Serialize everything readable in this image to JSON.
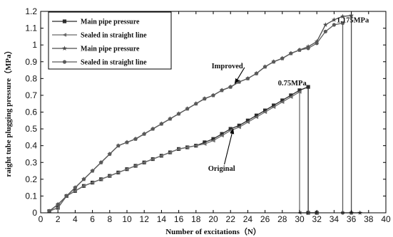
{
  "chart_data": {
    "type": "line",
    "xlabel": "Number of excitations（N）",
    "ylabel": "raight tube plugging pressure（MPa）",
    "xlim": [
      0,
      40
    ],
    "ylim": [
      0,
      1.2
    ],
    "xticks": [
      0,
      2,
      4,
      6,
      8,
      10,
      12,
      14,
      16,
      18,
      20,
      22,
      24,
      26,
      28,
      30,
      32,
      34,
      36,
      38,
      40
    ],
    "yticks": [
      0,
      0.1,
      0.2,
      0.3,
      0.4,
      0.5,
      0.6,
      0.7,
      0.8,
      0.9,
      1,
      1.1,
      1.2
    ],
    "grid": false,
    "legend_position": "top-left",
    "series": [
      {
        "name": "Main pipe pressure",
        "color": "#2b2b2b",
        "marker": "square",
        "x": [
          1,
          2,
          3,
          4,
          5,
          6,
          7,
          8,
          9,
          10,
          11,
          12,
          13,
          14,
          15,
          16,
          17,
          18,
          19,
          20,
          21,
          22,
          23,
          24,
          25,
          26,
          27,
          28,
          29,
          30,
          31,
          31,
          32
        ],
        "y": [
          0.01,
          0.03,
          0.1,
          0.13,
          0.16,
          0.18,
          0.2,
          0.22,
          0.24,
          0.26,
          0.28,
          0.3,
          0.32,
          0.34,
          0.36,
          0.38,
          0.39,
          0.4,
          0.42,
          0.44,
          0.47,
          0.5,
          0.52,
          0.55,
          0.58,
          0.61,
          0.64,
          0.67,
          0.7,
          0.73,
          0.75,
          0.0,
          0.0
        ]
      },
      {
        "name": "Sealed in straight line",
        "color": "#6a6a6a",
        "marker": "triangle-left",
        "x": [
          1,
          2,
          3,
          4,
          5,
          6,
          7,
          8,
          9,
          10,
          11,
          12,
          13,
          14,
          15,
          16,
          17,
          18,
          19,
          20,
          21,
          22,
          23,
          24,
          25,
          26,
          27,
          28,
          29,
          30,
          30,
          31,
          32
        ],
        "y": [
          0.01,
          0.03,
          0.1,
          0.13,
          0.16,
          0.18,
          0.2,
          0.22,
          0.24,
          0.26,
          0.28,
          0.3,
          0.32,
          0.34,
          0.36,
          0.38,
          0.39,
          0.4,
          0.41,
          0.43,
          0.46,
          0.49,
          0.51,
          0.54,
          0.57,
          0.6,
          0.63,
          0.66,
          0.69,
          0.72,
          0.0,
          0.0,
          0.0
        ]
      },
      {
        "name": "Main pipe pressure",
        "color": "#4a4a4a",
        "marker": "star",
        "x": [
          1,
          2,
          3,
          4,
          5,
          6,
          7,
          8,
          9,
          10,
          11,
          12,
          13,
          14,
          15,
          16,
          17,
          18,
          19,
          20,
          21,
          22,
          23,
          24,
          25,
          26,
          27,
          28,
          29,
          30,
          31,
          32,
          33,
          34,
          35,
          36,
          36,
          37
        ],
        "y": [
          0.01,
          0.05,
          0.1,
          0.15,
          0.2,
          0.25,
          0.3,
          0.35,
          0.4,
          0.42,
          0.44,
          0.47,
          0.5,
          0.53,
          0.56,
          0.59,
          0.62,
          0.65,
          0.68,
          0.7,
          0.73,
          0.75,
          0.78,
          0.8,
          0.83,
          0.87,
          0.9,
          0.92,
          0.95,
          0.97,
          0.99,
          1.02,
          1.12,
          1.15,
          1.17,
          1.175,
          0.0,
          0.0
        ]
      },
      {
        "name": "Sealed in straight line",
        "color": "#595959",
        "marker": "circle",
        "x": [
          1,
          2,
          3,
          4,
          5,
          6,
          7,
          8,
          9,
          10,
          11,
          12,
          13,
          14,
          15,
          16,
          17,
          18,
          19,
          20,
          21,
          22,
          23,
          24,
          25,
          26,
          27,
          28,
          29,
          30,
          31,
          32,
          33,
          34,
          35,
          35,
          36
        ],
        "y": [
          0.01,
          0.05,
          0.1,
          0.15,
          0.2,
          0.25,
          0.3,
          0.35,
          0.4,
          0.42,
          0.44,
          0.47,
          0.5,
          0.53,
          0.56,
          0.59,
          0.62,
          0.65,
          0.68,
          0.7,
          0.73,
          0.75,
          0.78,
          0.8,
          0.83,
          0.87,
          0.9,
          0.92,
          0.95,
          0.97,
          0.98,
          1.01,
          1.08,
          1.12,
          1.13,
          0.0,
          0.0
        ]
      }
    ],
    "annotations": [
      {
        "id": "improved",
        "text": "Improved",
        "x": 19.8,
        "y": 0.86,
        "arrow_to": [
          22.5,
          0.77
        ]
      },
      {
        "id": "original",
        "text": "Original",
        "x": 19.4,
        "y": 0.25,
        "arrow_to": [
          22.3,
          0.5
        ]
      },
      {
        "id": "peak-original",
        "text": "0.75MPa",
        "x": 27.5,
        "y": 0.76
      },
      {
        "id": "peak-improved",
        "text": "1.175MPa",
        "x": 34.3,
        "y": 1.135
      }
    ]
  }
}
